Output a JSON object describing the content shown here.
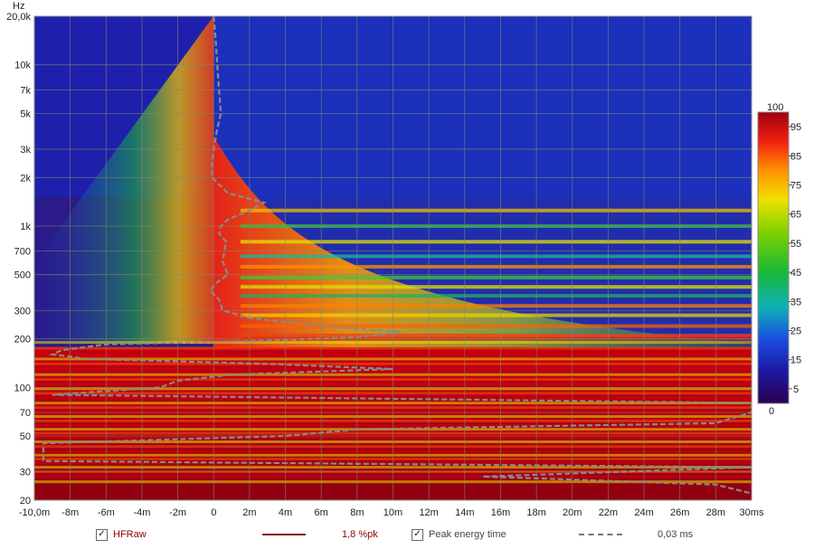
{
  "chart_data": {
    "type": "heatmap",
    "title": "",
    "ylabel": "Hz",
    "xlabel": "",
    "x_ticks": [
      "-10,0m",
      "-8m",
      "-6m",
      "-4m",
      "-2m",
      "0",
      "2m",
      "4m",
      "6m",
      "8m",
      "10m",
      "12m",
      "14m",
      "16m",
      "18m",
      "20m",
      "22m",
      "24m",
      "26m",
      "28m",
      "30ms"
    ],
    "x_tick_values": [
      -10,
      -8,
      -6,
      -4,
      -2,
      0,
      2,
      4,
      6,
      8,
      10,
      12,
      14,
      16,
      18,
      20,
      22,
      24,
      26,
      28,
      30
    ],
    "xlim": [
      -10,
      30
    ],
    "y_scale": "log",
    "ylim": [
      20,
      20000
    ],
    "y_ticks": [
      "20,0k",
      "10k",
      "7k",
      "5k",
      "3k",
      "2k",
      "1k",
      "700",
      "500",
      "300",
      "200",
      "100",
      "70",
      "50",
      "30",
      "20"
    ],
    "y_tick_values": [
      20000,
      10000,
      7000,
      5000,
      3000,
      2000,
      1000,
      700,
      500,
      300,
      200,
      100,
      70,
      50,
      30,
      20
    ],
    "colorbar": {
      "label_top": "100",
      "label_bottom": "0",
      "ticks": [
        "95",
        "85",
        "75",
        "65",
        "55",
        "45",
        "35",
        "25",
        "15",
        "5"
      ],
      "tick_values": [
        95,
        85,
        75,
        65,
        55,
        45,
        35,
        25,
        15,
        5
      ],
      "range": [
        0,
        100
      ]
    },
    "resonance_bands_hz": [
      1250,
      1000,
      800,
      650,
      560,
      480,
      420,
      370,
      320,
      280,
      240,
      210,
      200
    ],
    "peak_energy_time_ms": {
      "freq_hz": [
        20000,
        15000,
        10000,
        7000,
        5000,
        4000,
        3000,
        2500,
        2000,
        1600,
        1400,
        1250,
        1100,
        1000,
        900,
        800,
        700,
        600,
        500,
        450,
        400,
        350,
        300,
        270,
        240,
        220,
        205,
        195,
        185,
        170,
        160,
        150,
        140,
        130,
        120,
        110,
        100,
        90,
        80,
        70,
        60,
        55,
        50,
        45,
        40,
        35,
        32,
        28,
        25,
        22
      ],
      "time_ms": [
        0.0,
        0.1,
        0.2,
        0.3,
        0.4,
        0.2,
        0.0,
        -0.1,
        -0.1,
        0.8,
        2.8,
        2.0,
        0.8,
        0.4,
        0.3,
        0.7,
        0.6,
        0.5,
        0.8,
        0.2,
        -0.2,
        0.3,
        0.5,
        2.0,
        6.0,
        10.5,
        8.0,
        3.0,
        -6.0,
        -8.5,
        -9.0,
        -7.0,
        3.0,
        10.0,
        1.0,
        -2.0,
        -3.0,
        -9.0,
        30.0,
        30.0,
        28.0,
        8.0,
        4.0,
        -9.5,
        -9.5,
        -9.5,
        30.0,
        15.0,
        28.0,
        30.0
      ]
    },
    "legend": [
      {
        "checked": true,
        "name": "HFRaw",
        "value": "1,8 %pk",
        "color": "#8b0000"
      },
      {
        "checked": true,
        "name": "Peak energy time",
        "value": "0,03 ms",
        "color": "#808080"
      }
    ]
  }
}
